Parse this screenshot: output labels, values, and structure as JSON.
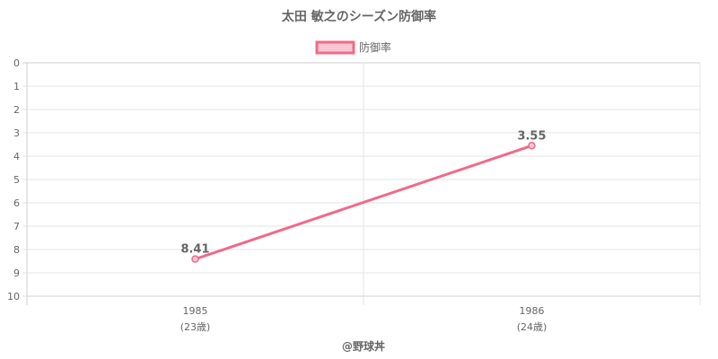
{
  "chart_data": {
    "type": "line",
    "title": "太田 敏之のシーズン防御率",
    "legend": {
      "position": "top",
      "label": "防御率"
    },
    "categories": [
      "1985",
      "1986"
    ],
    "category_sublabels": [
      "(23歳)",
      "(24歳)"
    ],
    "series": [
      {
        "name": "防御率",
        "values": [
          8.41,
          3.55
        ],
        "color": "#f06a8a"
      }
    ],
    "data_labels": [
      "8.41",
      "3.55"
    ],
    "ylim": [
      0,
      10
    ],
    "y_reversed": true,
    "y_ticks": [
      "0",
      "1",
      "2",
      "3",
      "4",
      "5",
      "6",
      "7",
      "8",
      "9",
      "10"
    ],
    "grid": true,
    "xlabel": "",
    "ylabel": ""
  },
  "credit": "@野球丼"
}
